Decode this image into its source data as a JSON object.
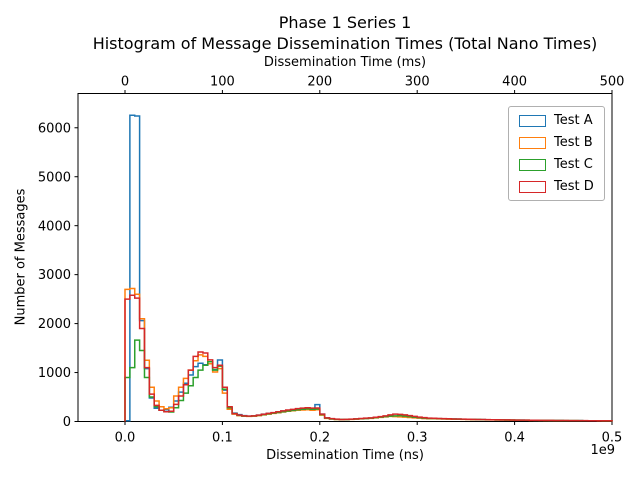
{
  "chart_data": {
    "type": "histogram-step",
    "title_line1": "Phase 1 Series 1",
    "title_line2": "Histogram of Message Dissemination Times (Total Nano Times)",
    "top_xlabel": "Dissemination Time (ms)",
    "bottom_xlabel": "Dissemination Time (ns)",
    "ylabel": "Number of Messages",
    "offset_label": "1e9",
    "legend_position": "upper right",
    "grid": false,
    "top_ticks": [
      {
        "value": 0,
        "label": "0"
      },
      {
        "value": 100,
        "label": "100"
      },
      {
        "value": 200,
        "label": "200"
      },
      {
        "value": 300,
        "label": "300"
      },
      {
        "value": 400,
        "label": "400"
      },
      {
        "value": 500,
        "label": "500"
      }
    ],
    "bottom_ticks": [
      {
        "value": 0.0,
        "label": "0.0"
      },
      {
        "value": 0.1,
        "label": "0.1"
      },
      {
        "value": 0.2,
        "label": "0.2"
      },
      {
        "value": 0.3,
        "label": "0.3"
      },
      {
        "value": 0.4,
        "label": "0.4"
      },
      {
        "value": 0.5,
        "label": "0.5"
      }
    ],
    "y_ticks": [
      {
        "value": 0,
        "label": "0"
      },
      {
        "value": 1000,
        "label": "1000"
      },
      {
        "value": 2000,
        "label": "2000"
      },
      {
        "value": 3000,
        "label": "3000"
      },
      {
        "value": 4000,
        "label": "4000"
      },
      {
        "value": 5000,
        "label": "5000"
      },
      {
        "value": 6000,
        "label": "6000"
      }
    ],
    "x_unit_scale": "1e9 ns",
    "bin_start": 0.0,
    "bin_width": 0.005,
    "xlim": [
      -0.04825,
      0.5
    ],
    "ylim": [
      0,
      6700
    ],
    "series": [
      {
        "name": "Test A",
        "color": "#1f77b4",
        "values": [
          15,
          6255,
          6240,
          2060,
          1080,
          480,
          270,
          230,
          240,
          290,
          420,
          600,
          780,
          950,
          1120,
          1190,
          1160,
          1180,
          1060,
          1255,
          640,
          270,
          170,
          140,
          120,
          110,
          115,
          130,
          150,
          165,
          180,
          200,
          215,
          230,
          240,
          250,
          260,
          270,
          265,
          345,
          150,
          75,
          55,
          45,
          40,
          42,
          45,
          50,
          55,
          62,
          70,
          80,
          90,
          100,
          110,
          108,
          100,
          95,
          88,
          80,
          72,
          65,
          58,
          60,
          57,
          54,
          52,
          50,
          48,
          46,
          44,
          42,
          40,
          38,
          36,
          35,
          33,
          32,
          30,
          29,
          28,
          27,
          26,
          25,
          24,
          23,
          22,
          21,
          20,
          20,
          19,
          18,
          18,
          17,
          16,
          16,
          15,
          15,
          14,
          14
        ]
      },
      {
        "name": "Test B",
        "color": "#ff7f0e",
        "values": [
          2700,
          2718,
          2600,
          2100,
          1250,
          700,
          420,
          300,
          260,
          280,
          520,
          700,
          880,
          1050,
          1240,
          1360,
          1330,
          1180,
          1010,
          1080,
          580,
          250,
          150,
          120,
          110,
          105,
          110,
          120,
          135,
          150,
          165,
          180,
          195,
          210,
          220,
          230,
          235,
          240,
          230,
          240,
          130,
          65,
          50,
          42,
          38,
          40,
          44,
          48,
          54,
          60,
          65,
          75,
          85,
          95,
          105,
          100,
          95,
          90,
          82,
          75,
          68,
          60,
          55,
          56,
          53,
          51,
          49,
          47,
          45,
          43,
          41,
          39,
          38,
          36,
          34,
          33,
          31,
          30,
          29,
          28,
          27,
          26,
          25,
          24,
          23,
          22,
          21,
          20,
          19,
          19,
          18,
          17,
          17,
          16,
          15,
          15,
          14,
          13,
          13,
          12
        ]
      },
      {
        "name": "Test C",
        "color": "#2ca02c",
        "values": [
          900,
          1100,
          1663,
          1450,
          900,
          500,
          300,
          230,
          200,
          195,
          280,
          430,
          580,
          730,
          900,
          1050,
          1150,
          1220,
          1050,
          1130,
          660,
          280,
          160,
          125,
          110,
          108,
          112,
          125,
          140,
          155,
          170,
          185,
          200,
          215,
          228,
          240,
          250,
          258,
          250,
          255,
          140,
          70,
          52,
          44,
          40,
          42,
          46,
          50,
          56,
          62,
          68,
          78,
          90,
          100,
          110,
          115,
          120,
          110,
          100,
          88,
          78,
          70,
          62,
          62,
          59,
          56,
          53,
          51,
          49,
          47,
          45,
          43,
          41,
          39,
          37,
          36,
          34,
          33,
          31,
          30,
          29,
          28,
          27,
          26,
          25,
          24,
          23,
          22,
          21,
          20,
          19,
          18,
          18,
          17,
          16,
          15,
          15,
          14,
          13,
          13
        ]
      },
      {
        "name": "Test D",
        "color": "#d62728",
        "values": [
          2500,
          2580,
          2520,
          1900,
          1100,
          560,
          330,
          230,
          200,
          210,
          350,
          520,
          750,
          1050,
          1330,
          1420,
          1400,
          1260,
          1100,
          1150,
          700,
          300,
          160,
          130,
          115,
          110,
          115,
          130,
          148,
          165,
          182,
          200,
          218,
          235,
          248,
          262,
          272,
          280,
          272,
          275,
          150,
          75,
          58,
          48,
          42,
          44,
          48,
          54,
          60,
          68,
          75,
          88,
          100,
          115,
          135,
          150,
          145,
          135,
          120,
          105,
          90,
          80,
          70,
          66,
          62,
          58,
          55,
          52,
          50,
          48,
          46,
          44,
          42,
          40,
          38,
          36,
          35,
          33,
          32,
          30,
          29,
          28,
          27,
          26,
          25,
          24,
          23,
          22,
          21,
          20,
          20,
          19,
          18,
          17,
          17,
          16,
          15,
          15,
          14,
          14
        ]
      }
    ]
  }
}
